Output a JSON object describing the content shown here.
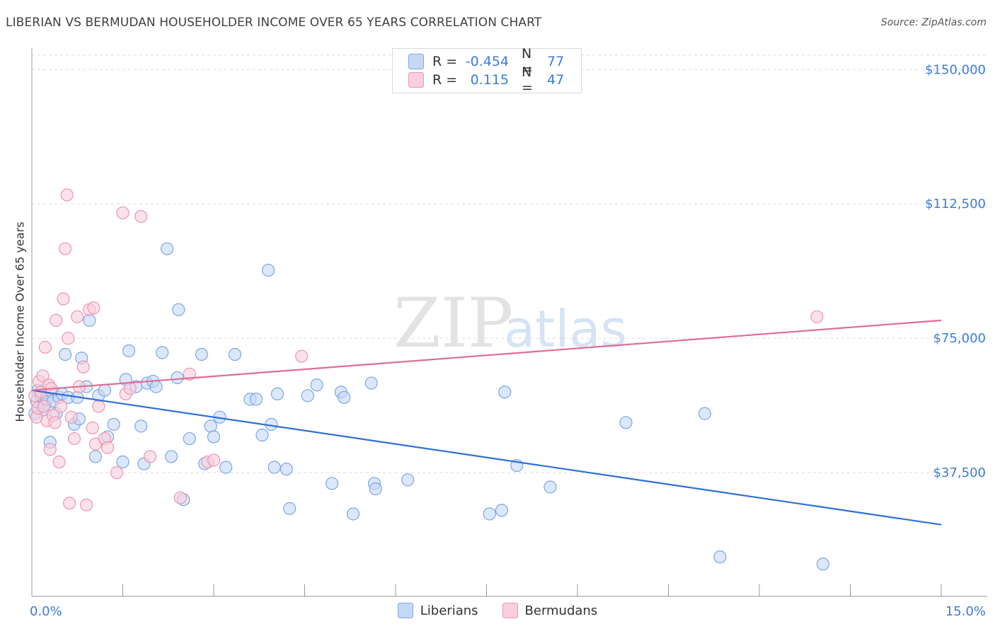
{
  "header": {
    "title": "LIBERIAN VS BERMUDAN HOUSEHOLDER INCOME OVER 65 YEARS CORRELATION CHART",
    "source": "Source: ZipAtlas.com"
  },
  "watermark": {
    "part1": "ZIP",
    "part2": "atlas"
  },
  "stats": [
    {
      "r_label": "R =",
      "r_value": "-0.454",
      "n_label": "N =",
      "n_value": "77"
    },
    {
      "r_label": "R =",
      "r_value": "0.115",
      "n_label": "N =",
      "n_value": "47"
    }
  ],
  "legend": {
    "liberians": "Liberians",
    "bermudans": "Bermudans"
  },
  "colors": {
    "liberians_fill": "#c5d9f5",
    "liberians_stroke": "#7aa6e8",
    "liberians_line": "#2f6fd6",
    "bermudans_fill": "#f9cfdc",
    "bermudans_stroke": "#ee94b0",
    "bermudans_line": "#e06c96",
    "axis_text": "#3b7dd8",
    "grid": "#dddddd"
  },
  "chart_data": {
    "type": "scatter",
    "title": "LIBERIAN VS BERMUDAN HOUSEHOLDER INCOME OVER 65 YEARS CORRELATION CHART",
    "xlabel": "",
    "ylabel": "Householder Income Over 65 years",
    "xlim": [
      0,
      15
    ],
    "ylim": [
      3000,
      154000
    ],
    "x_tick_labels": {
      "left": "0.0%",
      "right": "15.0%"
    },
    "y_ticks": [
      {
        "value": 37500,
        "label": "$37,500"
      },
      {
        "value": 75000,
        "label": "$75,000"
      },
      {
        "value": 112500,
        "label": "$112,500"
      },
      {
        "value": 150000,
        "label": "$150,000"
      }
    ],
    "grid": true,
    "series": [
      {
        "name": "Liberians",
        "trend": {
          "x": [
            0,
            15
          ],
          "y": [
            60500,
            23000
          ]
        },
        "points": [
          [
            0.05,
            54000
          ],
          [
            0.08,
            57500
          ],
          [
            0.1,
            60500
          ],
          [
            0.15,
            59000
          ],
          [
            0.18,
            55000
          ],
          [
            0.22,
            56500
          ],
          [
            0.25,
            58000
          ],
          [
            0.3,
            46000
          ],
          [
            0.33,
            60000
          ],
          [
            0.35,
            57500
          ],
          [
            0.4,
            54000
          ],
          [
            0.45,
            58500
          ],
          [
            0.5,
            59500
          ],
          [
            0.55,
            70500
          ],
          [
            0.6,
            58500
          ],
          [
            0.7,
            51000
          ],
          [
            0.75,
            58500
          ],
          [
            0.78,
            52500
          ],
          [
            0.82,
            69500
          ],
          [
            0.9,
            61500
          ],
          [
            0.95,
            80000
          ],
          [
            1.05,
            42000
          ],
          [
            1.1,
            59000
          ],
          [
            1.2,
            60500
          ],
          [
            1.25,
            47500
          ],
          [
            1.35,
            51000
          ],
          [
            1.5,
            40500
          ],
          [
            1.55,
            63500
          ],
          [
            1.6,
            71500
          ],
          [
            1.72,
            61500
          ],
          [
            1.8,
            50500
          ],
          [
            1.85,
            40000
          ],
          [
            1.9,
            62500
          ],
          [
            2.0,
            63000
          ],
          [
            2.05,
            61500
          ],
          [
            2.15,
            71000
          ],
          [
            2.23,
            100000
          ],
          [
            2.3,
            42000
          ],
          [
            2.4,
            64000
          ],
          [
            2.42,
            83000
          ],
          [
            2.5,
            30000
          ],
          [
            2.6,
            47000
          ],
          [
            2.8,
            70500
          ],
          [
            2.85,
            40000
          ],
          [
            2.95,
            50500
          ],
          [
            3.0,
            47500
          ],
          [
            3.1,
            53000
          ],
          [
            3.2,
            39000
          ],
          [
            3.35,
            70500
          ],
          [
            3.6,
            58000
          ],
          [
            3.7,
            58000
          ],
          [
            3.8,
            48000
          ],
          [
            3.9,
            94000
          ],
          [
            3.95,
            51000
          ],
          [
            4.0,
            39000
          ],
          [
            4.05,
            59500
          ],
          [
            4.2,
            38500
          ],
          [
            4.25,
            27500
          ],
          [
            4.55,
            59000
          ],
          [
            4.7,
            62000
          ],
          [
            4.95,
            34500
          ],
          [
            5.1,
            60000
          ],
          [
            5.15,
            58500
          ],
          [
            5.3,
            26000
          ],
          [
            5.6,
            62500
          ],
          [
            5.65,
            34500
          ],
          [
            5.67,
            33000
          ],
          [
            6.2,
            35500
          ],
          [
            7.55,
            26000
          ],
          [
            7.75,
            27000
          ],
          [
            7.8,
            60000
          ],
          [
            8.0,
            39500
          ],
          [
            8.55,
            33500
          ],
          [
            9.8,
            51500
          ],
          [
            11.1,
            54000
          ],
          [
            11.35,
            14000
          ],
          [
            13.05,
            12000
          ]
        ]
      },
      {
        "name": "Bermudans",
        "trend": {
          "x": [
            0,
            15
          ],
          "y": [
            60500,
            80000
          ]
        },
        "points": [
          [
            0.05,
            59000
          ],
          [
            0.08,
            53000
          ],
          [
            0.1,
            55500
          ],
          [
            0.12,
            63000
          ],
          [
            0.15,
            60000
          ],
          [
            0.18,
            64500
          ],
          [
            0.2,
            56000
          ],
          [
            0.22,
            72500
          ],
          [
            0.25,
            52000
          ],
          [
            0.28,
            62000
          ],
          [
            0.3,
            44000
          ],
          [
            0.32,
            61000
          ],
          [
            0.35,
            53500
          ],
          [
            0.38,
            51500
          ],
          [
            0.4,
            80000
          ],
          [
            0.45,
            40500
          ],
          [
            0.48,
            56000
          ],
          [
            0.52,
            86000
          ],
          [
            0.55,
            100000
          ],
          [
            0.58,
            115000
          ],
          [
            0.6,
            75000
          ],
          [
            0.62,
            29000
          ],
          [
            0.65,
            53000
          ],
          [
            0.7,
            47000
          ],
          [
            0.75,
            81000
          ],
          [
            0.78,
            61500
          ],
          [
            0.85,
            67000
          ],
          [
            0.9,
            28500
          ],
          [
            0.95,
            83000
          ],
          [
            1.0,
            50000
          ],
          [
            1.02,
            83500
          ],
          [
            1.05,
            45500
          ],
          [
            1.1,
            56000
          ],
          [
            1.2,
            47000
          ],
          [
            1.25,
            44500
          ],
          [
            1.4,
            37500
          ],
          [
            1.5,
            110000
          ],
          [
            1.55,
            59500
          ],
          [
            1.62,
            61000
          ],
          [
            1.8,
            109000
          ],
          [
            1.95,
            42000
          ],
          [
            2.45,
            30500
          ],
          [
            2.6,
            65000
          ],
          [
            2.9,
            40500
          ],
          [
            3.0,
            41000
          ],
          [
            4.45,
            70000
          ],
          [
            12.95,
            81000
          ]
        ]
      }
    ]
  }
}
